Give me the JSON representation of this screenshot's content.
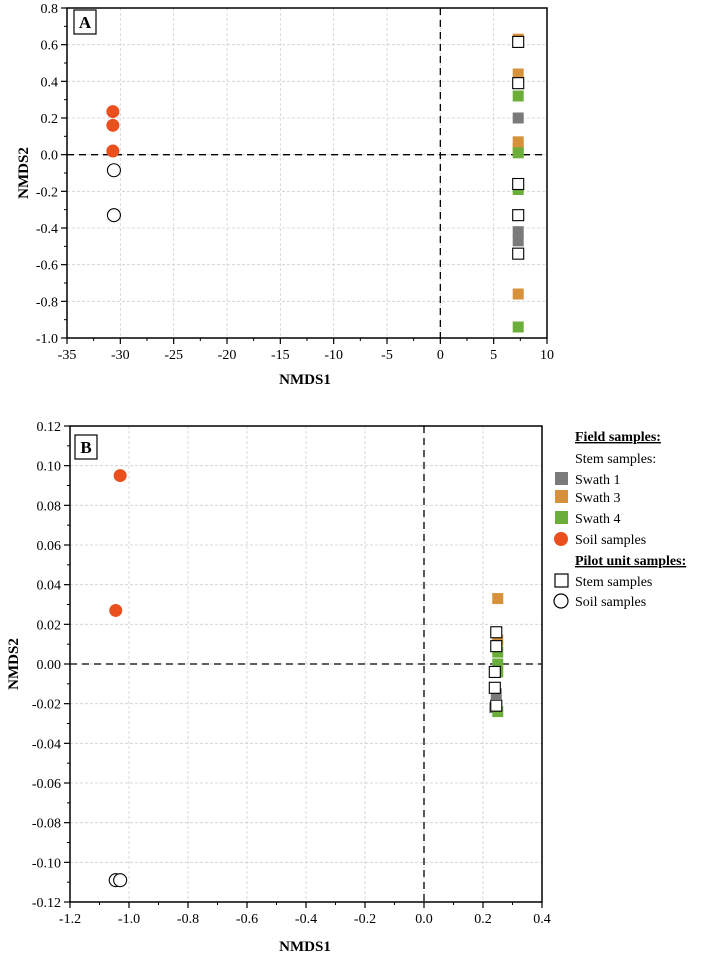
{
  "chart_data": [
    {
      "type": "scatter",
      "panel_label": "A",
      "xlabel": "NMDS1",
      "ylabel": "NMDS2",
      "xlim": [
        -35,
        10
      ],
      "ylim": [
        -1.0,
        0.8
      ],
      "x_ticks": [
        -35,
        -30,
        -25,
        -20,
        -15,
        -10,
        -5,
        0,
        5,
        10
      ],
      "x_tick_labels": [
        "-35",
        "-30",
        "-25",
        "-20",
        "-15",
        "-10",
        "-5",
        "0",
        "5",
        "10"
      ],
      "y_ticks": [
        -1.0,
        -0.8,
        -0.6,
        -0.4,
        -0.2,
        0.0,
        0.2,
        0.4,
        0.6,
        0.8
      ],
      "y_tick_labels": [
        "-1.0",
        "-0.8",
        "-0.6",
        "-0.4",
        "-0.2",
        "0.0",
        "0.2",
        "0.4",
        "0.6",
        "0.8"
      ],
      "grid": true,
      "reference_lines": {
        "x": 0,
        "y": 0
      },
      "series": [
        {
          "key": "swath1",
          "points": [
            [
              7.3,
              0.2
            ],
            [
              7.3,
              -0.42
            ],
            [
              7.3,
              -0.47
            ]
          ]
        },
        {
          "key": "swath3",
          "points": [
            [
              7.3,
              0.63
            ],
            [
              7.3,
              0.44
            ],
            [
              7.3,
              0.07
            ],
            [
              7.3,
              0.03
            ],
            [
              7.3,
              -0.76
            ]
          ]
        },
        {
          "key": "swath4",
          "points": [
            [
              7.3,
              0.32
            ],
            [
              7.3,
              0.01
            ],
            [
              7.3,
              -0.19
            ],
            [
              7.3,
              -0.94
            ]
          ]
        },
        {
          "key": "field_soil",
          "points": [
            [
              -30.7,
              0.235
            ],
            [
              -30.7,
              0.16
            ],
            [
              -30.7,
              0.02
            ]
          ]
        },
        {
          "key": "pilot_stem",
          "points": [
            [
              7.3,
              0.615
            ],
            [
              7.3,
              0.39
            ],
            [
              7.3,
              -0.16
            ],
            [
              7.3,
              -0.33
            ],
            [
              7.3,
              -0.54
            ]
          ]
        },
        {
          "key": "pilot_soil",
          "points": [
            [
              -30.6,
              -0.085
            ],
            [
              -30.6,
              -0.33
            ]
          ]
        }
      ]
    },
    {
      "type": "scatter",
      "panel_label": "B",
      "xlabel": "NMDS1",
      "ylabel": "NMDS2",
      "xlim": [
        -1.2,
        0.4
      ],
      "ylim": [
        -0.12,
        0.12
      ],
      "x_ticks": [
        -1.2,
        -1.0,
        -0.8,
        -0.6,
        -0.4,
        -0.2,
        0.0,
        0.2,
        0.4
      ],
      "x_tick_labels": [
        "-1.2",
        "-1.0",
        "-0.8",
        "-0.6",
        "-0.4",
        "-0.2",
        "0.0",
        "0.2",
        "0.4"
      ],
      "y_ticks": [
        -0.12,
        -0.1,
        -0.08,
        -0.06,
        -0.04,
        -0.02,
        0.0,
        0.02,
        0.04,
        0.06,
        0.08,
        0.1,
        0.12
      ],
      "y_tick_labels": [
        "-0.12",
        "-0.10",
        "-0.08",
        "-0.06",
        "-0.04",
        "-0.02",
        "0.00",
        "0.02",
        "0.04",
        "0.06",
        "0.08",
        "0.10",
        "0.12"
      ],
      "grid": true,
      "reference_lines": {
        "x": 0,
        "y": 0
      },
      "series": [
        {
          "key": "swath1",
          "points": [
            [
              0.245,
              -0.015
            ],
            [
              0.24,
              -0.022
            ]
          ]
        },
        {
          "key": "swath3",
          "points": [
            [
              0.25,
              0.033
            ],
            [
              0.25,
              0.012
            ]
          ]
        },
        {
          "key": "swath4",
          "points": [
            [
              0.25,
              0.006
            ],
            [
              0.25,
              0.0
            ],
            [
              0.25,
              -0.004
            ],
            [
              0.25,
              -0.024
            ]
          ]
        },
        {
          "key": "field_soil",
          "points": [
            [
              -1.03,
              0.095
            ],
            [
              -1.045,
              0.027
            ]
          ]
        },
        {
          "key": "pilot_stem",
          "points": [
            [
              0.245,
              0.016
            ],
            [
              0.245,
              0.009
            ],
            [
              0.24,
              -0.004
            ],
            [
              0.24,
              -0.012
            ],
            [
              0.245,
              -0.021
            ]
          ]
        },
        {
          "key": "pilot_soil",
          "points": [
            [
              -1.045,
              -0.109
            ],
            [
              -1.03,
              -0.109
            ]
          ]
        }
      ]
    }
  ],
  "legend": {
    "field_heading": "Field samples:",
    "stem_heading": "Stem samples:",
    "pilot_heading": "Pilot unit samples:",
    "items": [
      {
        "key": "swath1",
        "label": "Swath 1",
        "shape": "square",
        "color": "#7a7a7a",
        "filled": true
      },
      {
        "key": "swath3",
        "label": "Swath 3",
        "shape": "square",
        "color": "#d6913a",
        "filled": true
      },
      {
        "key": "swath4",
        "label": "Swath 4",
        "shape": "square",
        "color": "#6cae3a",
        "filled": true
      },
      {
        "key": "field_soil",
        "label": "Soil samples",
        "shape": "circle",
        "color": "#e9501e",
        "filled": true
      },
      {
        "key": "pilot_stem",
        "label": "Stem samples",
        "shape": "square",
        "color": "#000000",
        "filled": false
      },
      {
        "key": "pilot_soil",
        "label": "Soil samples",
        "shape": "circle",
        "color": "#000000",
        "filled": false
      }
    ]
  }
}
